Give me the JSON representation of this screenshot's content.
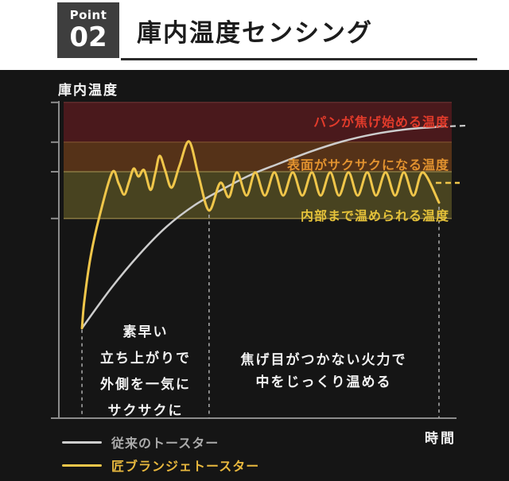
{
  "header": {
    "badge_label": "Point",
    "badge_number": "02",
    "title": "庫内温度センシング"
  },
  "colors": {
    "panel_bg": "#151515",
    "badge_bg": "#3e3e3e",
    "axis": "#8c8c8c",
    "marker_dash": "#a3a3a3",
    "accent_yellow": "#f0c64a",
    "line_gray": "#cdcdcd"
  },
  "chart_data": {
    "type": "line",
    "title": "庫内温度センシング",
    "xlabel": "時間",
    "ylabel": "庫内温度",
    "x_range": [
      0,
      100
    ],
    "y_range": [
      0,
      100
    ],
    "grid": "off",
    "legend_position": "bottom-left",
    "bands": [
      {
        "label": "パンが焦げ始める温度",
        "label_color": "#e23b2b",
        "fill": "#4a191c",
        "edge": "#5e2c2c",
        "y_from": 86.8,
        "y_to": 99.3
      },
      {
        "label": "表面がサクサクになる温度",
        "label_color": "#e2922f",
        "fill": "#553218",
        "edge": "#74462a",
        "y_from": 77.5,
        "y_to": 86.8
      },
      {
        "label": "内部まで温められる温度",
        "label_color": "#e5c23a",
        "fill": "#484320",
        "edge": "#8a7b42",
        "edge_bottom": "#8a7b42",
        "y_from": 62.8,
        "y_to": 77.5
      }
    ],
    "series": [
      {
        "name": "従来のトースター",
        "color": "#cdcdcd",
        "points": [
          [
            6,
            28.3
          ],
          [
            13.4,
            41
          ],
          [
            20.4,
            51.5
          ],
          [
            27.3,
            60.3
          ],
          [
            34.3,
            67
          ],
          [
            41.3,
            72
          ],
          [
            48.3,
            76.5
          ],
          [
            55.3,
            80
          ],
          [
            63.3,
            83.8
          ],
          [
            71.3,
            87
          ],
          [
            79.2,
            89.3
          ],
          [
            87.2,
            90.8
          ],
          [
            94.2,
            91.5
          ],
          [
            97.2,
            91.8
          ]
        ],
        "ext_dash": [
          [
            98.4,
            91.8
          ],
          [
            102.6,
            92
          ]
        ]
      },
      {
        "name": "匠ブランジェトースター",
        "color": "#f0c64a",
        "points": [
          [
            6,
            28.3
          ],
          [
            6.6,
            37
          ],
          [
            8.2,
            51
          ],
          [
            10.4,
            63.5
          ],
          [
            13.6,
            77.3
          ],
          [
            15.2,
            73.8
          ],
          [
            16.6,
            70.3
          ],
          [
            17.8,
            74.3
          ],
          [
            19,
            78.5
          ],
          [
            20.2,
            76
          ],
          [
            21.6,
            78
          ],
          [
            23.2,
            71.8
          ],
          [
            24.4,
            77
          ],
          [
            25.5,
            82.5
          ],
          [
            26.9,
            77.8
          ],
          [
            28.5,
            72.5
          ],
          [
            30.5,
            79.5
          ],
          [
            32.9,
            87
          ],
          [
            35.3,
            76
          ],
          [
            37.9,
            65.3
          ],
          [
            40.7,
            74
          ],
          [
            42.9,
            69.5
          ],
          [
            44.9,
            77.3
          ],
          [
            47.3,
            70
          ],
          [
            49.5,
            77.3
          ],
          [
            51.9,
            70
          ],
          [
            54.3,
            77.3
          ],
          [
            56.5,
            70
          ],
          [
            58.9,
            77.3
          ],
          [
            61.3,
            70
          ],
          [
            63.7,
            77.3
          ],
          [
            65.9,
            70
          ],
          [
            68.3,
            77.3
          ],
          [
            70.5,
            70
          ],
          [
            72.9,
            77.3
          ],
          [
            75.2,
            70
          ],
          [
            77.6,
            77.3
          ],
          [
            79.8,
            70
          ],
          [
            82.2,
            77.3
          ],
          [
            84.6,
            70
          ],
          [
            86.8,
            77.3
          ],
          [
            89.2,
            70
          ],
          [
            91.6,
            77.3
          ],
          [
            95.6,
            67.8
          ]
        ],
        "ext_dash": [
          [
            94.8,
            74
          ],
          [
            100.8,
            74
          ]
        ]
      }
    ],
    "phase_markers": [
      {
        "x": 6,
        "y_top": 27.8
      },
      {
        "x": 37.9,
        "y_top": 64
      },
      {
        "x": 95.6,
        "y_top": 66.5
      }
    ],
    "grid_tick_y": [
      99.3,
      86.8,
      77.5,
      62.8
    ],
    "annotations": {
      "fast": {
        "lines": [
          "素早い",
          "立ち上がりで",
          "外側を一気に",
          "サクサクに"
        ]
      },
      "slow": {
        "lines": [
          "焦げ目がつかない火力で",
          "中をじっくり温める"
        ]
      }
    }
  }
}
